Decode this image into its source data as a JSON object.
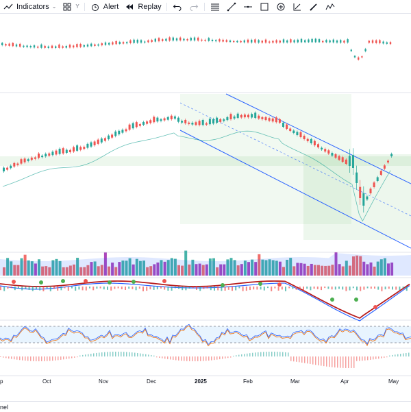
{
  "toolbar": {
    "indicators_label": "Indicators",
    "alert_label": "Alert",
    "replay_label": "Replay",
    "layout_small": "Y"
  },
  "x_axis": {
    "labels": [
      "p",
      "Oct",
      "Nov",
      "Dec",
      "2025",
      "Feb",
      "Mar",
      "Apr",
      "May"
    ]
  },
  "footer": {
    "panel_label": "nel"
  },
  "colors": {
    "up": "#26a69a",
    "down": "#ef5350",
    "channel": "#2962ff",
    "volume_purple": "#9c27b0",
    "macd_green": "#4caf50",
    "macd_red": "#b71c1c"
  }
}
